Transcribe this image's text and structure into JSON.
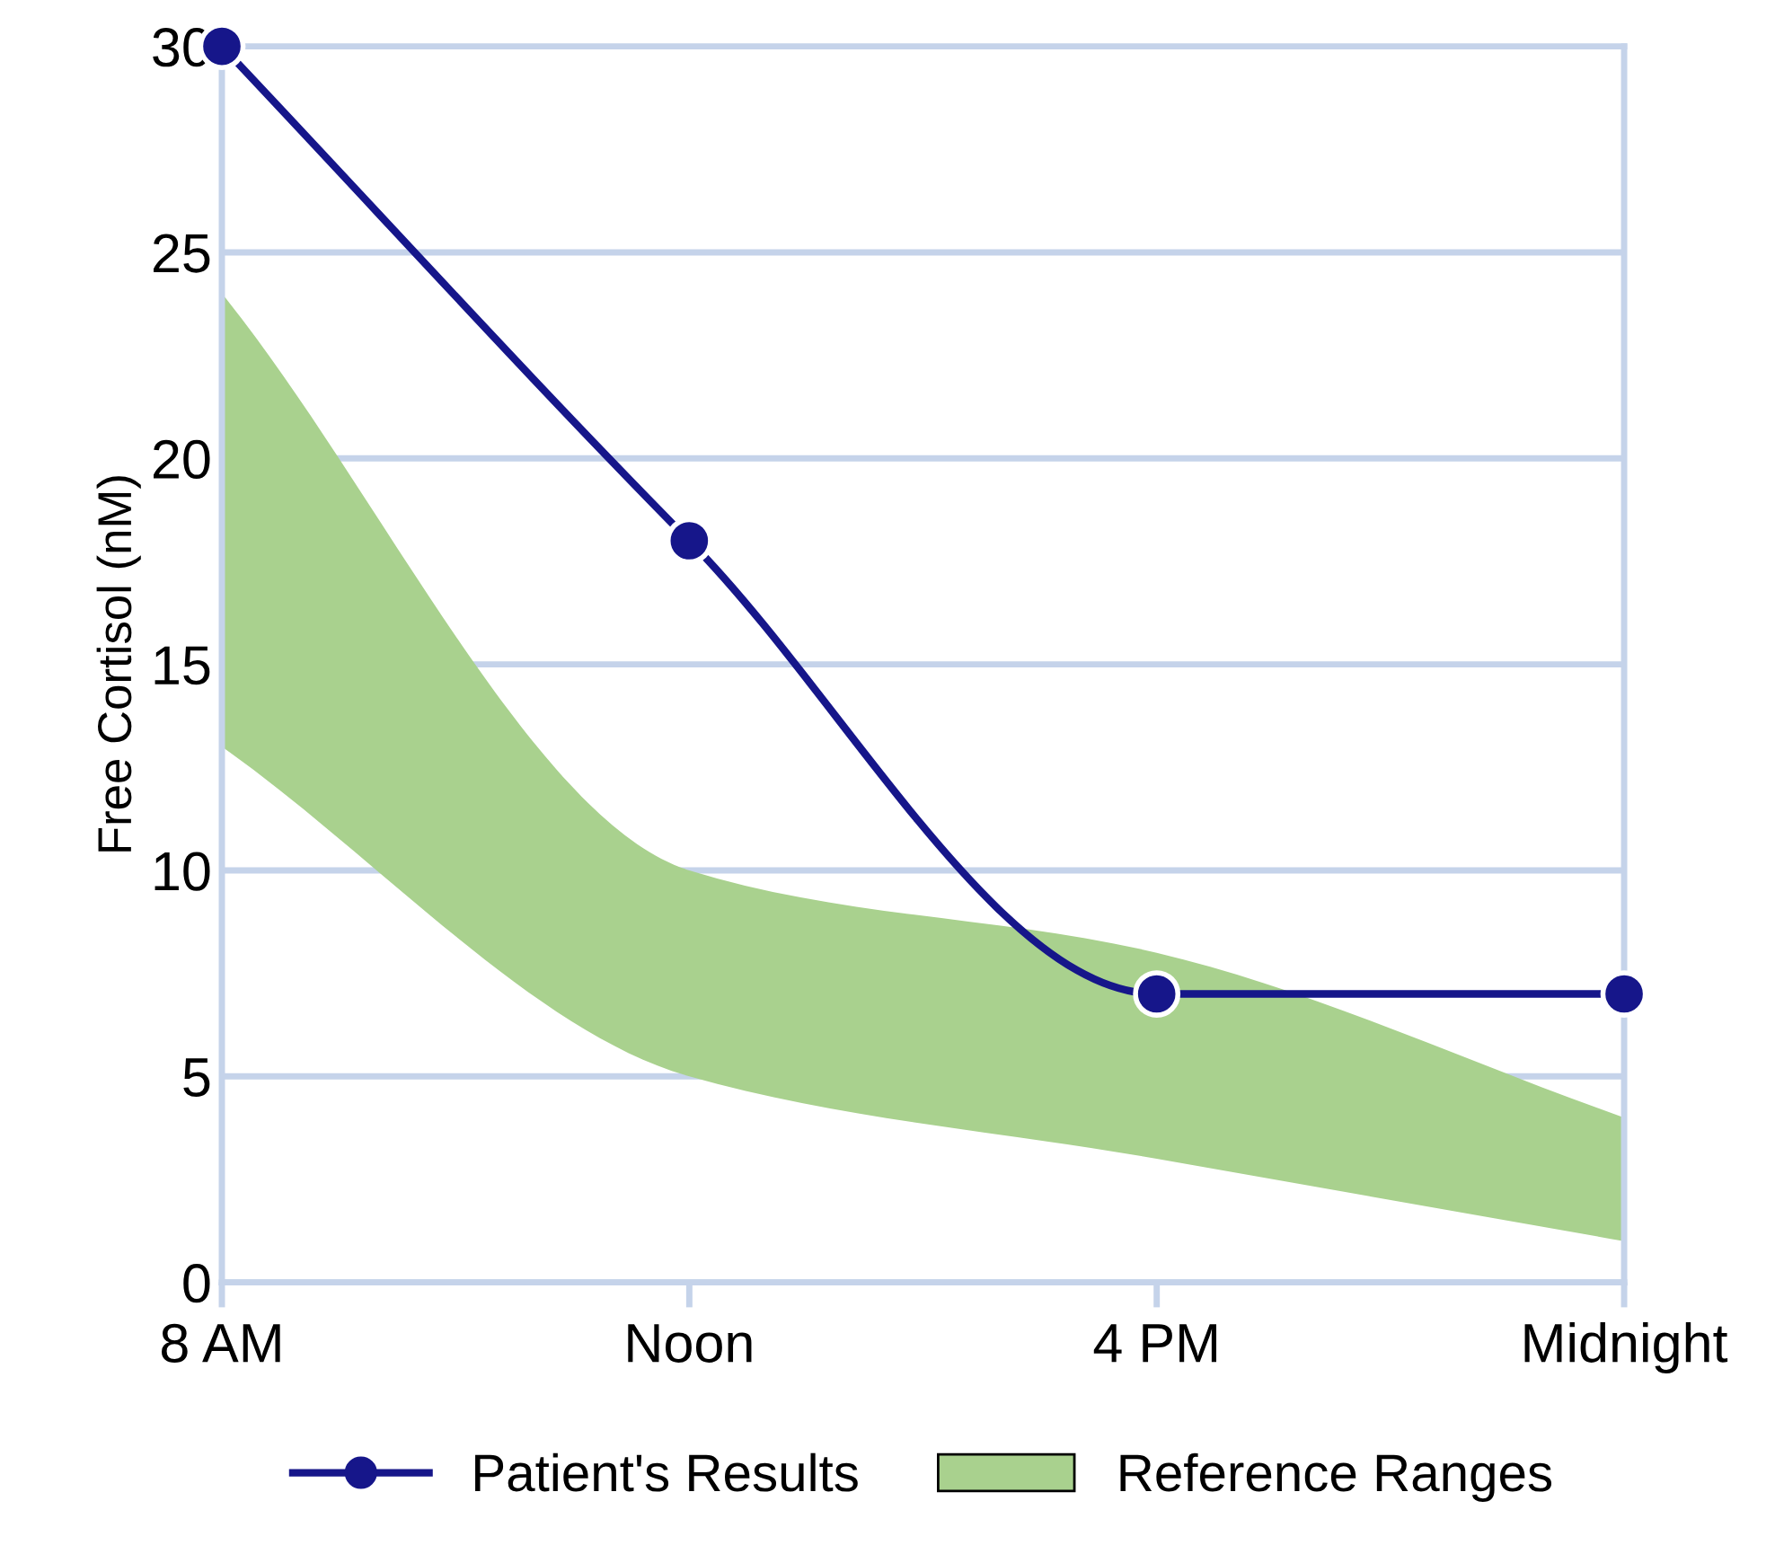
{
  "chart_data": {
    "type": "line",
    "ylabel": "Free Cortisol (nM)",
    "categories": [
      "8 AM",
      "Noon",
      "4 PM",
      "Midnight"
    ],
    "series": [
      {
        "name": "Patient's Results",
        "color": "#16168a",
        "values": [
          30,
          18,
          7,
          7
        ],
        "marker": "circle",
        "line_style": "solid"
      },
      {
        "name": "Reference Ranges",
        "color": "#a9d18e",
        "values": [
          null,
          null,
          null,
          null
        ],
        "lower": [
          13,
          5,
          3,
          1
        ],
        "upper": [
          24,
          10,
          8,
          4
        ]
      }
    ],
    "ylim": [
      0,
      30
    ],
    "yticks": [
      0,
      5,
      10,
      15,
      20,
      25,
      30
    ],
    "grid": "y",
    "legend": "bottom"
  }
}
